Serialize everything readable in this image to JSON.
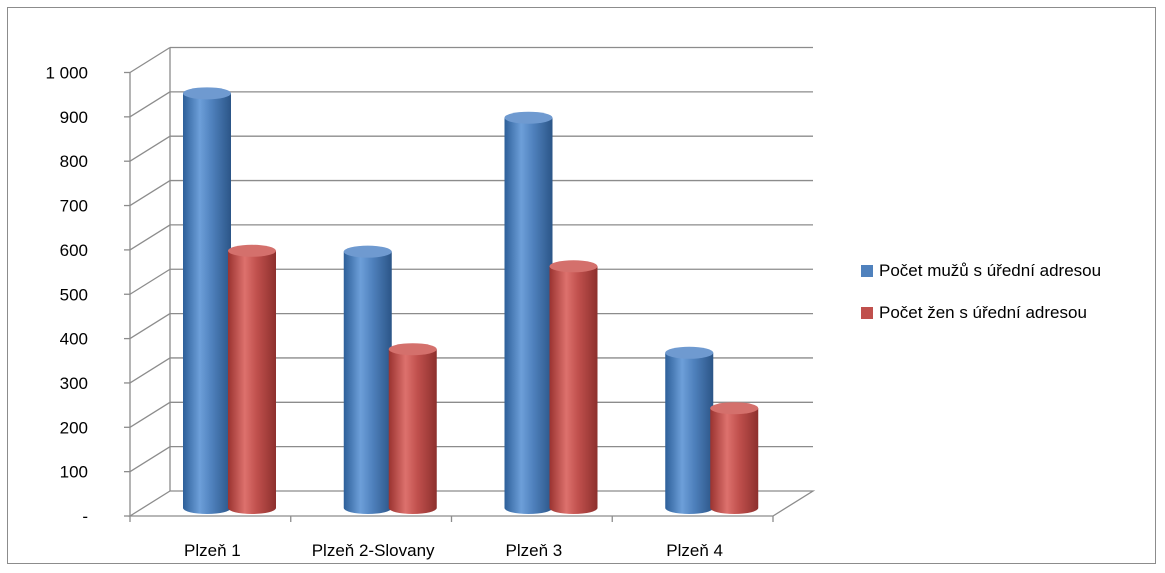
{
  "chart_data": {
    "type": "bar",
    "style": "3d-cylinder",
    "categories": [
      "Plzeň 1",
      "Plzeň 2-Slovany",
      "Plzeň 3",
      "Plzeň 4"
    ],
    "series": [
      {
        "name": "Počet mužů s úřední adresou",
        "color": "#4f81bd",
        "values": [
          935,
          578,
          880,
          350
        ]
      },
      {
        "name": "Počet žen s úřední adresou",
        "color": "#c0504d",
        "values": [
          580,
          358,
          545,
          225
        ]
      }
    ],
    "yticks": [
      "-",
      "100",
      "200",
      "300",
      "400",
      "500",
      "600",
      "700",
      "800",
      "900",
      "1 000"
    ],
    "ylim": [
      0,
      1000
    ],
    "grid": true,
    "legend_position": "right"
  },
  "colors": {
    "gridline": "#8c8c8c",
    "frame": "#8c8c8c"
  }
}
